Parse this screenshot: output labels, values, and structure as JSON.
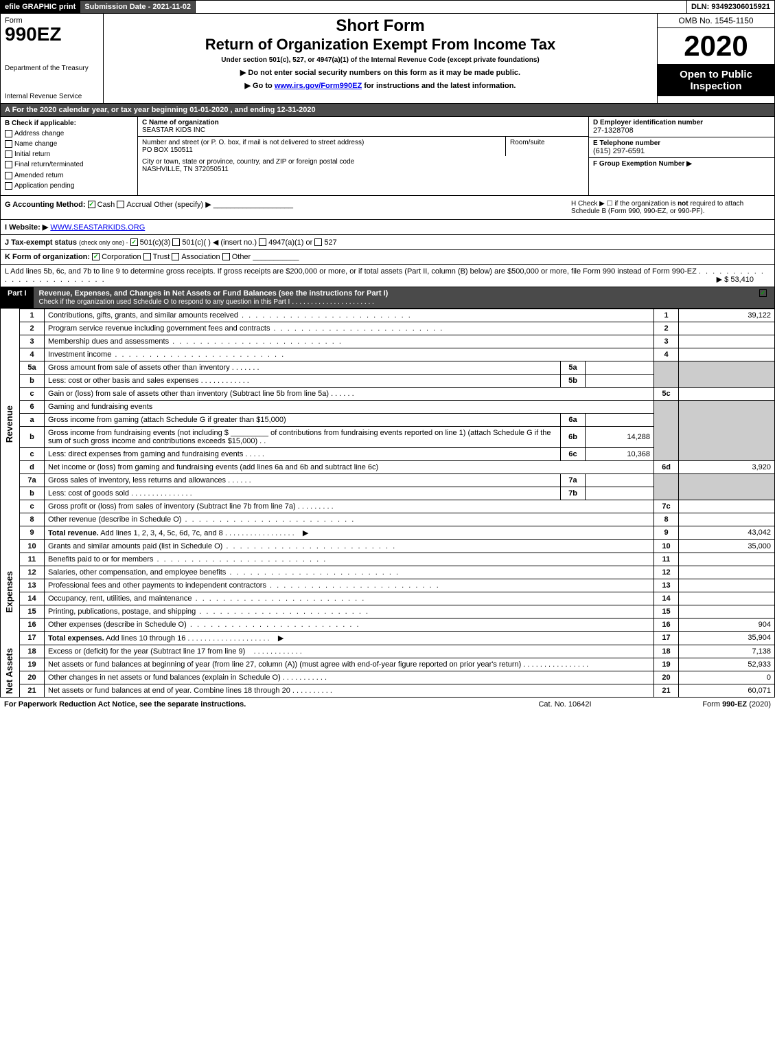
{
  "topbar": {
    "efile": "efile GRAPHIC print",
    "submission": "Submission Date - 2021-11-02",
    "dln": "DLN: 93492306015921"
  },
  "header": {
    "form_word": "Form",
    "form_num": "990EZ",
    "dept": "Department of the Treasury",
    "irs": "Internal Revenue Service",
    "short_form": "Short Form",
    "return_title": "Return of Organization Exempt From Income Tax",
    "under": "Under section 501(c), 527, or 4947(a)(1) of the Internal Revenue Code (except private foundations)",
    "warn": "▶ Do not enter social security numbers on this form as it may be made public.",
    "go_prefix": "▶ Go to ",
    "go_link": "www.irs.gov/Form990EZ",
    "go_suffix": " for instructions and the latest information.",
    "omb": "OMB No. 1545-1150",
    "year": "2020",
    "open": "Open to Public Inspection"
  },
  "bar_a": "A For the 2020 calendar year, or tax year beginning 01-01-2020 , and ending 12-31-2020",
  "b": {
    "title": "B Check if applicable:",
    "items": [
      "Address change",
      "Name change",
      "Initial return",
      "Final return/terminated",
      "Amended return",
      "Application pending"
    ]
  },
  "c": {
    "name_lbl": "C Name of organization",
    "name": "SEASTAR KIDS INC",
    "addr_lbl": "Number and street (or P. O. box, if mail is not delivered to street address)",
    "addr": "PO BOX 150511",
    "room_lbl": "Room/suite",
    "city_lbl": "City or town, state or province, country, and ZIP or foreign postal code",
    "city": "NASHVILLE, TN  372050511"
  },
  "d": {
    "ein_lbl": "D Employer identification number",
    "ein": "27-1328708",
    "tel_lbl": "E Telephone number",
    "tel": "(615) 297-6591",
    "grp_lbl": "F Group Exemption Number ▶"
  },
  "g": {
    "label": "G Accounting Method:",
    "cash": "Cash",
    "accrual": "Accrual",
    "other": "Other (specify) ▶"
  },
  "h": {
    "text1": "H Check ▶ ☐ if the organization is ",
    "not": "not",
    "text2": " required to attach Schedule B (Form 990, 990-EZ, or 990-PF)."
  },
  "i": {
    "website_lbl": "I Website: ▶",
    "website": "WWW.SEASTARKIDS.ORG",
    "j_lbl": "J Tax-exempt status",
    "j_sub": "(check only one) -",
    "j_501c3": "501(c)(3)",
    "j_501c": "501(c)(  ) ◀ (insert no.)",
    "j_4947": "4947(a)(1) or",
    "j_527": "527"
  },
  "k": {
    "label": "K Form of organization:",
    "corp": "Corporation",
    "trust": "Trust",
    "assoc": "Association",
    "other": "Other"
  },
  "l": {
    "text": "L Add lines 5b, 6c, and 7b to line 9 to determine gross receipts. If gross receipts are $200,000 or more, or if total assets (Part II, column (B) below) are $500,000 or more, file Form 990 instead of Form 990-EZ",
    "arrow": "▶ $",
    "amount": "53,410"
  },
  "part1": {
    "label": "Part I",
    "title": "Revenue, Expenses, and Changes in Net Assets or Fund Balances (see the instructions for Part I)",
    "sub": "Check if the organization used Schedule O to respond to any question in this Part I"
  },
  "side_labels": {
    "revenue": "Revenue",
    "expenses": "Expenses",
    "netassets": "Net Assets"
  },
  "rows": {
    "r1": {
      "n": "1",
      "d": "Contributions, gifts, grants, and similar amounts received",
      "rn": "1",
      "rv": "39,122"
    },
    "r2": {
      "n": "2",
      "d": "Program service revenue including government fees and contracts",
      "rn": "2",
      "rv": ""
    },
    "r3": {
      "n": "3",
      "d": "Membership dues and assessments",
      "rn": "3",
      "rv": ""
    },
    "r4": {
      "n": "4",
      "d": "Investment income",
      "rn": "4",
      "rv": ""
    },
    "r5a": {
      "n": "5a",
      "d": "Gross amount from sale of assets other than inventory",
      "sn": "5a",
      "sv": ""
    },
    "r5b": {
      "n": "b",
      "d": "Less: cost or other basis and sales expenses",
      "sn": "5b",
      "sv": ""
    },
    "r5c": {
      "n": "c",
      "d": "Gain or (loss) from sale of assets other than inventory (Subtract line 5b from line 5a)",
      "rn": "5c",
      "rv": ""
    },
    "r6": {
      "n": "6",
      "d": "Gaming and fundraising events"
    },
    "r6a": {
      "n": "a",
      "d": "Gross income from gaming (attach Schedule G if greater than $15,000)",
      "sn": "6a",
      "sv": ""
    },
    "r6b": {
      "n": "b",
      "d1": "Gross income from fundraising events (not including $",
      "d2": "of contributions from fundraising events reported on line 1) (attach Schedule G if the sum of such gross income and contributions exceeds $15,000)",
      "sn": "6b",
      "sv": "14,288"
    },
    "r6c": {
      "n": "c",
      "d": "Less: direct expenses from gaming and fundraising events",
      "sn": "6c",
      "sv": "10,368"
    },
    "r6d": {
      "n": "d",
      "d": "Net income or (loss) from gaming and fundraising events (add lines 6a and 6b and subtract line 6c)",
      "rn": "6d",
      "rv": "3,920"
    },
    "r7a": {
      "n": "7a",
      "d": "Gross sales of inventory, less returns and allowances",
      "sn": "7a",
      "sv": ""
    },
    "r7b": {
      "n": "b",
      "d": "Less: cost of goods sold",
      "sn": "7b",
      "sv": ""
    },
    "r7c": {
      "n": "c",
      "d": "Gross profit or (loss) from sales of inventory (Subtract line 7b from line 7a)",
      "rn": "7c",
      "rv": ""
    },
    "r8": {
      "n": "8",
      "d": "Other revenue (describe in Schedule O)",
      "rn": "8",
      "rv": ""
    },
    "r9": {
      "n": "9",
      "d": "Total revenue. Add lines 1, 2, 3, 4, 5c, 6d, 7c, and 8",
      "rn": "9",
      "rv": "43,042"
    },
    "r10": {
      "n": "10",
      "d": "Grants and similar amounts paid (list in Schedule O)",
      "rn": "10",
      "rv": "35,000"
    },
    "r11": {
      "n": "11",
      "d": "Benefits paid to or for members",
      "rn": "11",
      "rv": ""
    },
    "r12": {
      "n": "12",
      "d": "Salaries, other compensation, and employee benefits",
      "rn": "12",
      "rv": ""
    },
    "r13": {
      "n": "13",
      "d": "Professional fees and other payments to independent contractors",
      "rn": "13",
      "rv": ""
    },
    "r14": {
      "n": "14",
      "d": "Occupancy, rent, utilities, and maintenance",
      "rn": "14",
      "rv": ""
    },
    "r15": {
      "n": "15",
      "d": "Printing, publications, postage, and shipping",
      "rn": "15",
      "rv": ""
    },
    "r16": {
      "n": "16",
      "d": "Other expenses (describe in Schedule O)",
      "rn": "16",
      "rv": "904"
    },
    "r17": {
      "n": "17",
      "d": "Total expenses. Add lines 10 through 16",
      "rn": "17",
      "rv": "35,904"
    },
    "r18": {
      "n": "18",
      "d": "Excess or (deficit) for the year (Subtract line 17 from line 9)",
      "rn": "18",
      "rv": "7,138"
    },
    "r19": {
      "n": "19",
      "d": "Net assets or fund balances at beginning of year (from line 27, column (A)) (must agree with end-of-year figure reported on prior year's return)",
      "rn": "19",
      "rv": "52,933"
    },
    "r20": {
      "n": "20",
      "d": "Other changes in net assets or fund balances (explain in Schedule O)",
      "rn": "20",
      "rv": "0"
    },
    "r21": {
      "n": "21",
      "d": "Net assets or fund balances at end of year. Combine lines 18 through 20",
      "rn": "21",
      "rv": "60,071"
    }
  },
  "footer": {
    "left": "For Paperwork Reduction Act Notice, see the separate instructions.",
    "center": "Cat. No. 10642I",
    "right_pre": "Form ",
    "right_b": "990-EZ",
    "right_suf": " (2020)"
  },
  "colors": {
    "dark_bar": "#4a4a4a",
    "shade": "#cccccc",
    "link": "#0000ee",
    "check": "#00aa00"
  }
}
